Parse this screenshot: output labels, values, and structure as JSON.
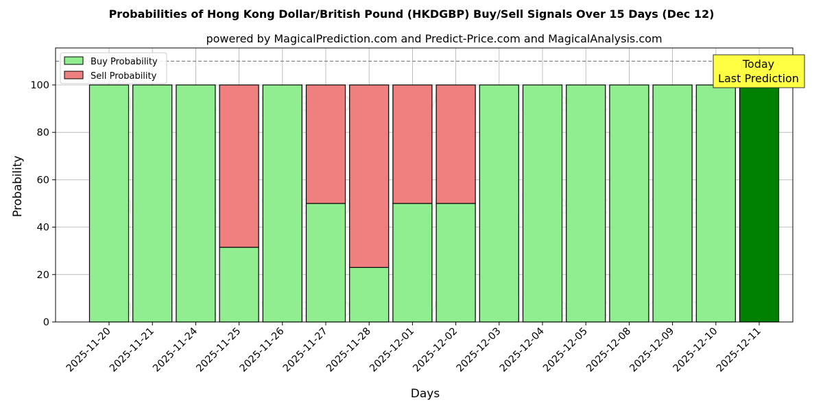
{
  "chart_data": {
    "type": "bar",
    "stacked": true,
    "title": "Probabilities of Hong Kong Dollar/British Pound (HKDGBP) Buy/Sell Signals Over 15 Days (Dec 12)",
    "subtitle": "powered by MagicalPrediction.com and Predict-Price.com and MagicalAnalysis.com",
    "xlabel": "Days",
    "ylabel": "Probability",
    "ylim": [
      0,
      115
    ],
    "yticks": [
      0,
      20,
      40,
      60,
      80,
      100
    ],
    "grid": true,
    "threshold_line": 110,
    "legend_position": "upper left",
    "categories": [
      "2025-11-20",
      "2025-11-21",
      "2025-11-24",
      "2025-11-25",
      "2025-11-26",
      "2025-11-27",
      "2025-11-28",
      "2025-12-01",
      "2025-12-02",
      "2025-12-03",
      "2025-12-04",
      "2025-12-05",
      "2025-12-08",
      "2025-12-09",
      "2025-12-10",
      "2025-12-11"
    ],
    "series": [
      {
        "name": "Buy Probability",
        "color": "#90ee90",
        "values": [
          100,
          100,
          100,
          31.5,
          100,
          50,
          23,
          50,
          50,
          100,
          100,
          100,
          100,
          100,
          100,
          100
        ]
      },
      {
        "name": "Sell Probability",
        "color": "#f08080",
        "values": [
          0,
          0,
          0,
          68.5,
          0,
          50,
          77,
          50,
          50,
          0,
          0,
          0,
          0,
          0,
          0,
          0
        ]
      }
    ],
    "highlight": {
      "index": 15,
      "color": "#008000"
    },
    "annotation": {
      "line1": "Today",
      "line2": "Last Prediction",
      "bg": "#ffff44"
    },
    "watermarks": [
      "MagicalAnalysis.com",
      "MagicalPrediction.com"
    ]
  }
}
